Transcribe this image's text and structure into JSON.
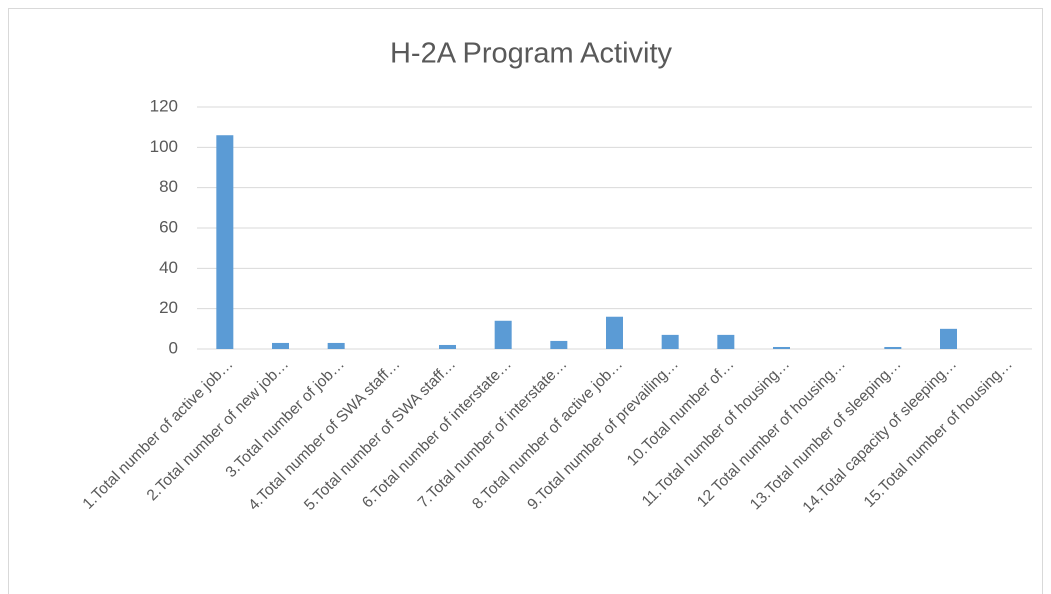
{
  "chart_data": {
    "type": "bar",
    "title": "H-2A Program Activity",
    "categories": [
      "1.Total number of active job…",
      "2.Total number of new job…",
      "3.Total number of job…",
      "4.Total number of SWA staff…",
      "5.Total number of SWA staff…",
      "6.Total number of interstate…",
      "7.Total number of interstate…",
      "8.Total number of active job…",
      "9.Total number of prevailing…",
      "10.Total number of…",
      "11.Total number of housing…",
      "12 Total number of housing…",
      "13.Total number of sleeping…",
      "14.Total capacity of sleeping…",
      "15.Total number of housing…"
    ],
    "values": [
      106,
      3,
      3,
      0,
      2,
      14,
      4,
      16,
      7,
      7,
      1,
      0,
      1,
      10,
      0
    ],
    "color": "#5b9bd5",
    "ylim": [
      0,
      120
    ],
    "yticks": [
      0,
      20,
      40,
      60,
      80,
      100,
      120
    ],
    "grid": true
  }
}
